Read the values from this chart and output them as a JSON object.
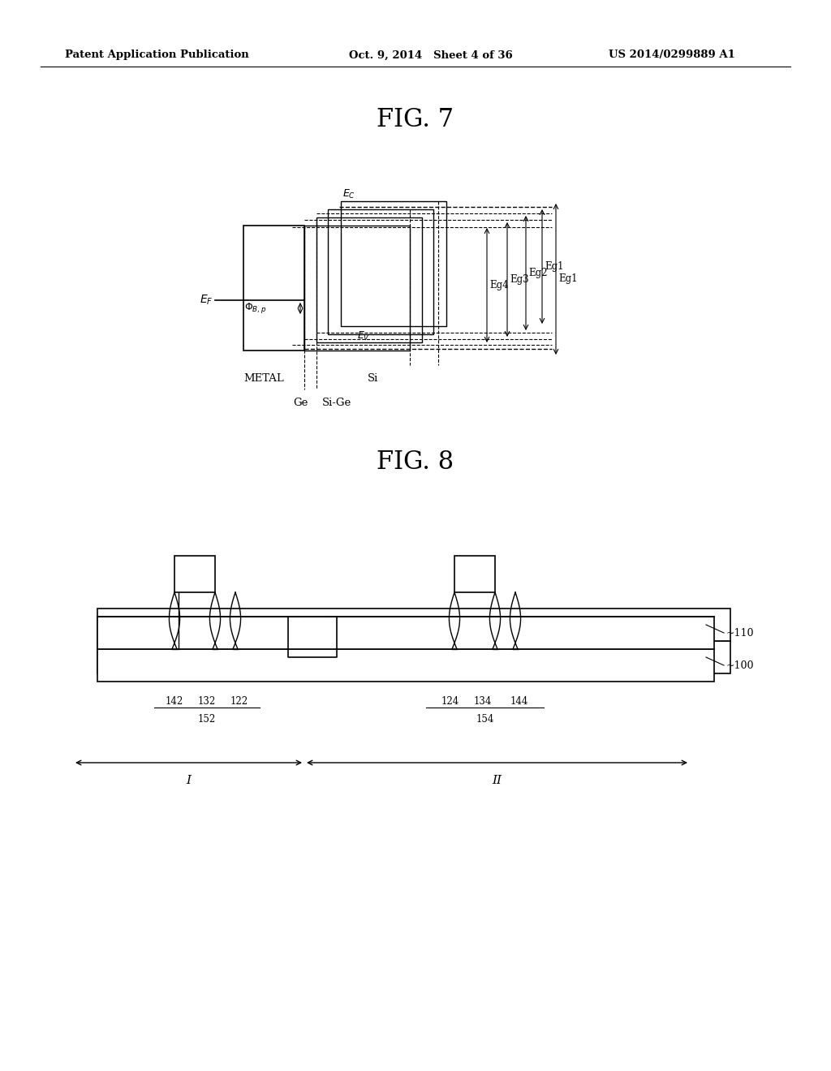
{
  "background_color": "#ffffff",
  "header_left": "Patent Application Publication",
  "header_middle": "Oct. 9, 2014   Sheet 4 of 36",
  "header_right": "US 2014/0299889 A1",
  "fig7_title": "FIG. 7",
  "fig8_title": "FIG. 8"
}
